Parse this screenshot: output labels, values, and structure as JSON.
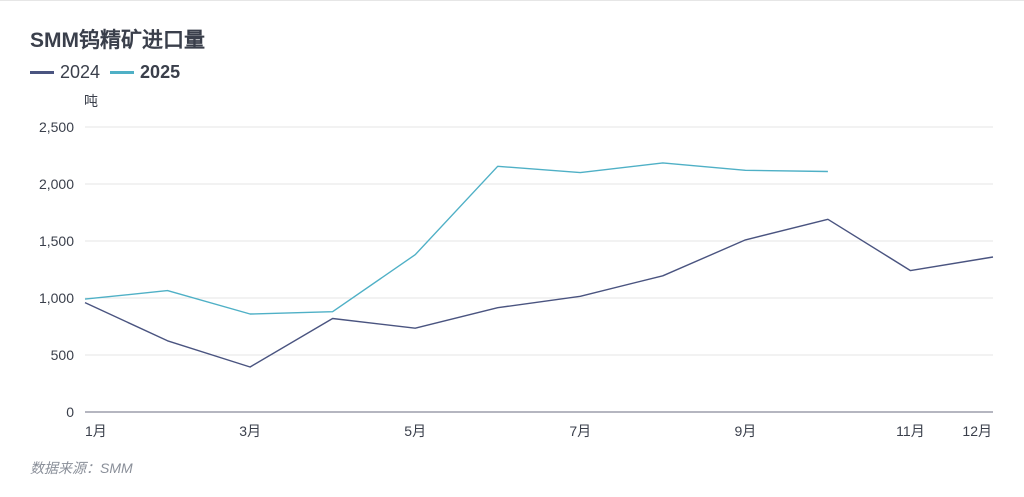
{
  "title": "SMM钨精矿进口量",
  "legend": [
    {
      "name": "2024",
      "color": "#4a5480"
    },
    {
      "name": "2025",
      "color": "#4fb0c6"
    }
  ],
  "source": "数据来源：SMM",
  "chart_data": {
    "type": "line",
    "title": "SMM钨精矿进口量",
    "ylabel": "吨",
    "xlabel": "",
    "ylim": [
      0,
      2500
    ],
    "yticks": [
      "0",
      "500",
      "1,000",
      "1,500",
      "2,000",
      "2,500"
    ],
    "categories": [
      "1月",
      "2月",
      "3月",
      "4月",
      "5月",
      "6月",
      "7月",
      "8月",
      "9月",
      "10月",
      "11月",
      "12月"
    ],
    "visible_xtick_labels": [
      "1月",
      "3月",
      "5月",
      "7月",
      "9月",
      "11月",
      "12月"
    ],
    "grid": "horizontal",
    "legend_position": "top-left",
    "series": [
      {
        "name": "2024",
        "color": "#4a5480",
        "values": [
          960,
          625,
          395,
          820,
          735,
          915,
          1015,
          1195,
          1510,
          1690,
          1240,
          1360
        ]
      },
      {
        "name": "2025",
        "color": "#4fb0c6",
        "values": [
          990,
          1065,
          860,
          880,
          1380,
          2155,
          2100,
          2185,
          2120,
          2110,
          null,
          null
        ]
      }
    ]
  }
}
